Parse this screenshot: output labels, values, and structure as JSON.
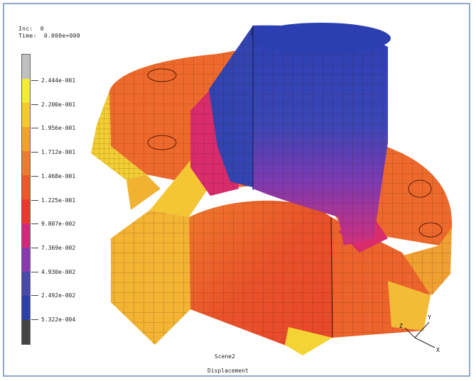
{
  "header": {
    "inc_label": "Inc:",
    "inc_value": "0",
    "time_label": "Time:",
    "time_value": "0.000e+000"
  },
  "legend": {
    "values": [
      "2.444e-001",
      "2.200e-001",
      "1.956e-001",
      "1.712e-001",
      "1.468e-001",
      "1.225e-001",
      "9.807e-002",
      "7.369e-002",
      "4.930e-002",
      "2.492e-002",
      "5.322e-004"
    ],
    "colors": [
      "#c0c0c0",
      "#f2ea38",
      "#f5c832",
      "#f2a030",
      "#ee7a2e",
      "#ea5a26",
      "#e63a2a",
      "#d22a7a",
      "#8a3ab0",
      "#4a4aae",
      "#2b40a8",
      "#444444"
    ]
  },
  "footer": {
    "increment_label": "Inc: 0",
    "scene_label": "Scene2",
    "result_label": "Displacement"
  },
  "axes": {
    "x": "X",
    "y": "Y",
    "z": "Z"
  }
}
